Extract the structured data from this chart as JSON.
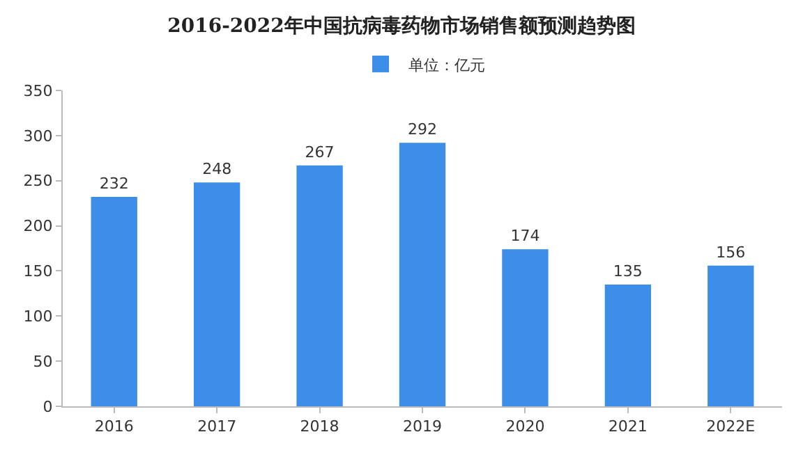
{
  "chart_data": {
    "type": "bar",
    "title": "2016-2022年中国抗病毒药物市场销售额预测趋势图",
    "categories": [
      "2016",
      "2017",
      "2018",
      "2019",
      "2020",
      "2021",
      "2022E"
    ],
    "series": [
      {
        "name": "单位：亿元",
        "color": "#3c8ee8",
        "values": [
          232,
          248,
          267,
          292,
          174,
          135,
          156
        ]
      }
    ],
    "ylim": [
      0,
      350
    ],
    "yticks": [
      0,
      50,
      100,
      150,
      200,
      250,
      300,
      350
    ],
    "grid": false,
    "legend": "top",
    "data_labels": true
  }
}
